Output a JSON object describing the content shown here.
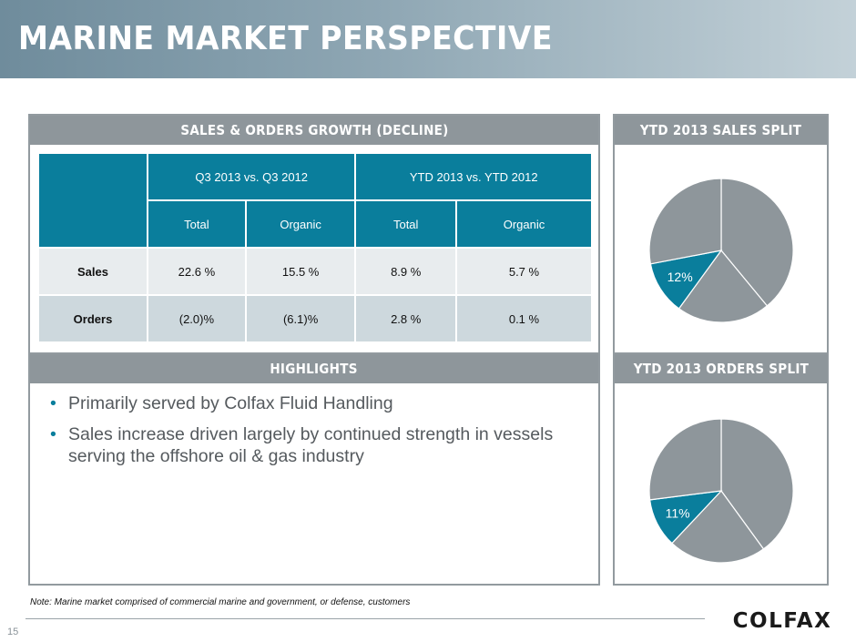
{
  "header": {
    "title": "MARINE MARKET PERSPECTIVE"
  },
  "table_panel": {
    "heading": "SALES & ORDERS GROWTH (DECLINE)",
    "group_headers": [
      "Q3 2013 vs. Q3 2012",
      "YTD 2013 vs. YTD 2012"
    ],
    "sub_headers": [
      "Total",
      "Organic",
      "Total",
      "Organic"
    ],
    "rows": [
      {
        "label": "Sales",
        "values": [
          "22.6 %",
          "15.5 %",
          "8.9 %",
          "5.7 %"
        ]
      },
      {
        "label": "Orders",
        "values": [
          "(2.0)%",
          "(6.1)%",
          "2.8 %",
          "0.1 %"
        ]
      }
    ]
  },
  "highlights": {
    "heading": "HIGHLIGHTS",
    "bullets": [
      "Primarily served by Colfax Fluid Handling",
      "Sales increase driven largely by continued strength in vessels serving the offshore oil & gas industry"
    ]
  },
  "sales_split": {
    "heading": "YTD 2013 SALES SPLIT",
    "highlight_label": "12%"
  },
  "orders_split": {
    "heading": "YTD 2013 ORDERS SPLIT",
    "highlight_label": "11%"
  },
  "chart_data": [
    {
      "type": "pie",
      "title": "YTD 2013 SALES SPLIT",
      "values": [
        0.39,
        0.21,
        0.12,
        0.28
      ],
      "labels": [
        "",
        "",
        "12%",
        ""
      ],
      "colors": [
        "#8e969b",
        "#8e969b",
        "#0a7e9c",
        "#8e969b"
      ]
    },
    {
      "type": "pie",
      "title": "YTD 2013 ORDERS SPLIT",
      "values": [
        0.4,
        0.22,
        0.11,
        0.27
      ],
      "labels": [
        "",
        "",
        "11%",
        ""
      ],
      "colors": [
        "#8e969b",
        "#8e969b",
        "#0a7e9c",
        "#8e969b"
      ]
    }
  ],
  "footer": {
    "note": "Note: Marine market comprised of commercial marine and government, or defense, customers",
    "page_number": "15",
    "logo_text": "COLFAX"
  },
  "colors": {
    "accent": "#0a7e9c",
    "panel_gray": "#8e969b",
    "light_row": "#e8ecee",
    "mid_row": "#cdd8dd"
  }
}
